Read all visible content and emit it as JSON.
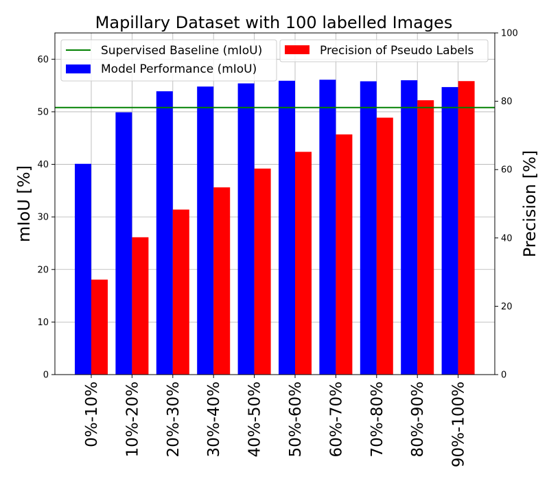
{
  "chart_data": {
    "type": "bar",
    "title": "Mapillary Dataset with 100 labelled Images",
    "xlabel": "",
    "ylabel": "mIoU [%]",
    "y2label": "Precision [%]",
    "categories": [
      "0%-10%",
      "10%-20%",
      "20%-30%",
      "30%-40%",
      "40%-50%",
      "50%-60%",
      "60%-70%",
      "70%-80%",
      "80%-90%",
      "90%-100%"
    ],
    "ylim": [
      0,
      65
    ],
    "y2lim": [
      0,
      100
    ],
    "yticks": [
      0,
      10,
      20,
      30,
      40,
      50,
      60
    ],
    "y2ticks": [
      0,
      20,
      40,
      60,
      80,
      100
    ],
    "grid": true,
    "legend_position": "top",
    "series": [
      {
        "name": "Model Performance (mIoU)",
        "axis": "left",
        "color": "#0000ff",
        "values": [
          40.1,
          49.9,
          53.9,
          54.8,
          55.4,
          55.9,
          56.1,
          55.8,
          56.0,
          54.7
        ]
      },
      {
        "name": "Precision of Pseudo Labels",
        "axis": "right",
        "color": "#ff0000",
        "values": [
          27.8,
          40.2,
          48.3,
          54.8,
          60.3,
          65.2,
          70.3,
          75.2,
          80.3,
          85.9
        ]
      }
    ],
    "baseline": {
      "name": "Supervised Baseline (mIoU)",
      "axis": "left",
      "color": "#008000",
      "value": 50.8
    }
  }
}
